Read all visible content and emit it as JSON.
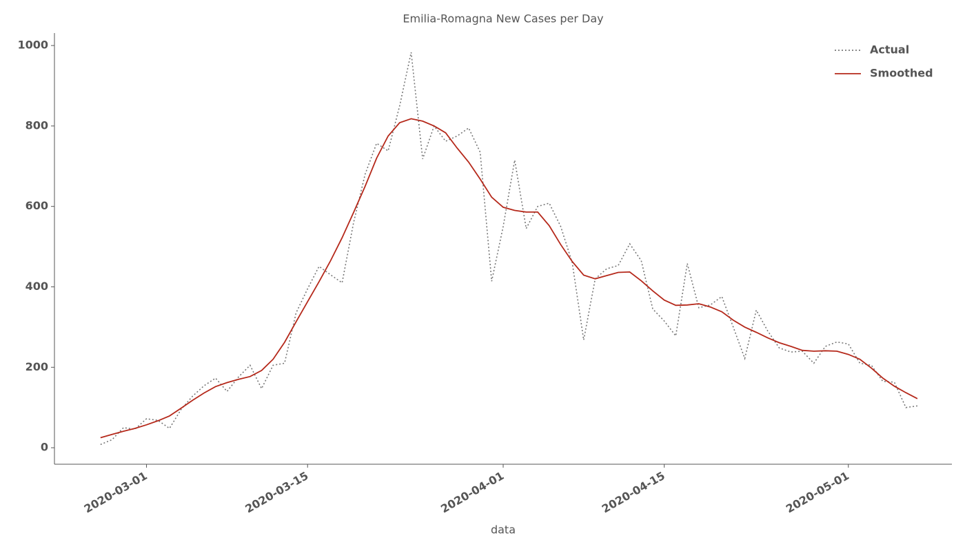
{
  "chart_data": {
    "type": "line",
    "title": "Emilia-Romagna New Cases per Day",
    "x_label": "data",
    "x": [
      "2020-02-26",
      "2020-02-27",
      "2020-02-28",
      "2020-02-29",
      "2020-03-01",
      "2020-03-02",
      "2020-03-03",
      "2020-03-04",
      "2020-03-05",
      "2020-03-06",
      "2020-03-07",
      "2020-03-08",
      "2020-03-09",
      "2020-03-10",
      "2020-03-11",
      "2020-03-12",
      "2020-03-13",
      "2020-03-14",
      "2020-03-15",
      "2020-03-16",
      "2020-03-17",
      "2020-03-18",
      "2020-03-19",
      "2020-03-20",
      "2020-03-21",
      "2020-03-22",
      "2020-03-23",
      "2020-03-24",
      "2020-03-25",
      "2020-03-26",
      "2020-03-27",
      "2020-03-28",
      "2020-03-29",
      "2020-03-30",
      "2020-03-31",
      "2020-04-01",
      "2020-04-02",
      "2020-04-03",
      "2020-04-04",
      "2020-04-05",
      "2020-04-06",
      "2020-04-07",
      "2020-04-08",
      "2020-04-09",
      "2020-04-10",
      "2020-04-11",
      "2020-04-12",
      "2020-04-13",
      "2020-04-14",
      "2020-04-15",
      "2020-04-16",
      "2020-04-17",
      "2020-04-18",
      "2020-04-19",
      "2020-04-20",
      "2020-04-21",
      "2020-04-22",
      "2020-04-23",
      "2020-04-24",
      "2020-04-25",
      "2020-04-26",
      "2020-04-27",
      "2020-04-28",
      "2020-04-29",
      "2020-04-30",
      "2020-05-01",
      "2020-05-02",
      "2020-05-03",
      "2020-05-04",
      "2020-05-05",
      "2020-05-06",
      "2020-05-07"
    ],
    "series": [
      {
        "name": "Actual",
        "color": "#777777",
        "dash": "dotted",
        "values": [
          8,
          20,
          50,
          46,
          72,
          68,
          48,
          95,
          128,
          154,
          173,
          140,
          176,
          205,
          147,
          205,
          210,
          335,
          395,
          451,
          430,
          410,
          560,
          680,
          757,
          738,
          850,
          983,
          718,
          800,
          762,
          775,
          795,
          735,
          414,
          550,
          715,
          545,
          600,
          608,
          550,
          460,
          268,
          420,
          445,
          453,
          507,
          465,
          345,
          315,
          278,
          458,
          348,
          355,
          376,
          300,
          222,
          342,
          290,
          248,
          238,
          240,
          210,
          252,
          263,
          258,
          210,
          205,
          165,
          163,
          100,
          104
        ]
      },
      {
        "name": "Smoothed",
        "color": "#b5281a",
        "dash": "solid",
        "values": [
          25,
          33,
          41,
          48,
          57,
          67,
          79,
          98,
          118,
          136,
          152,
          162,
          170,
          177,
          192,
          220,
          262,
          313,
          363,
          413,
          465,
          522,
          585,
          650,
          720,
          775,
          808,
          818,
          812,
          800,
          783,
          745,
          710,
          668,
          623,
          598,
          590,
          586,
          586,
          552,
          505,
          463,
          429,
          420,
          428,
          436,
          437,
          415,
          390,
          367,
          354,
          355,
          358,
          350,
          338,
          317,
          300,
          287,
          273,
          261,
          252,
          242,
          240,
          241,
          240,
          232,
          220,
          198,
          173,
          153,
          137,
          122
        ]
      }
    ],
    "xlim": [
      "2020-02-22",
      "2020-05-10"
    ],
    "xticks": [
      "2020-03-01",
      "2020-03-15",
      "2020-04-01",
      "2020-04-15",
      "2020-05-01"
    ],
    "ylim": [
      -41,
      1031
    ],
    "yticks": [
      0,
      200,
      400,
      600,
      800,
      1000
    ],
    "grid": false,
    "legend": "upper right"
  }
}
